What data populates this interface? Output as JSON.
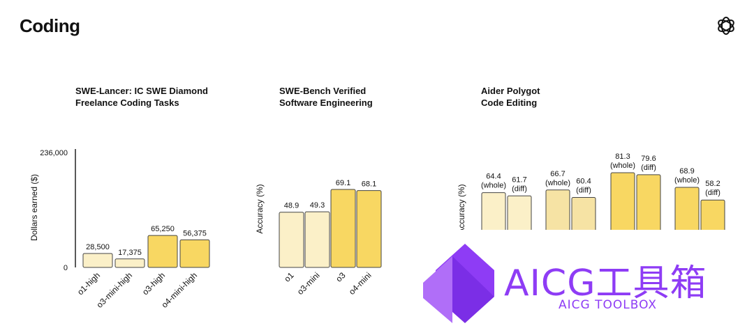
{
  "page": {
    "title": "Coding",
    "logo_icon": "openai-logo-icon"
  },
  "colors": {
    "light_bar": "#fbf0c8",
    "mid_bar": "#f6e3a4",
    "strong_bar": "#f8d762",
    "bar_stroke": "#444444",
    "watermark": "#8e3cf5"
  },
  "chart_data": [
    {
      "type": "bar",
      "title_lines": [
        "SWE-Lancer: IC SWE Diamond",
        "Freelance Coding Tasks"
      ],
      "ylabel": "Dollars earned ($)",
      "ytick_labels": [
        "236,000",
        "0"
      ],
      "ylim": [
        0,
        236000
      ],
      "categories": [
        "o1-high",
        "o3-mini-high",
        "o3-high",
        "o4-mini-high"
      ],
      "values": [
        28500,
        17375,
        65250,
        56375
      ],
      "value_labels": [
        "28,500",
        "17,375",
        "65,250",
        "56,375"
      ]
    },
    {
      "type": "bar",
      "title_lines": [
        "SWE-Bench Verified",
        "Software Engineering"
      ],
      "ylabel": "Accuracy (%)",
      "categories": [
        "o1",
        "o3-mini",
        "o3",
        "o4-mini"
      ],
      "values": [
        48.9,
        49.3,
        69.1,
        68.1
      ],
      "value_labels": [
        "48.9",
        "49.3",
        "69.1",
        "68.1"
      ]
    },
    {
      "type": "bar",
      "title_lines": [
        "Aider Polygot",
        "Code Editing"
      ],
      "ylabel": "Accuracy (%)",
      "series": [
        {
          "name": "(whole)",
          "values": [
            64.4,
            66.7,
            81.3,
            68.9
          ]
        },
        {
          "name": "(diff)",
          "values": [
            61.7,
            60.4,
            79.6,
            58.2
          ]
        }
      ],
      "value_labels": [
        [
          "64.4",
          "(whole)",
          "61.7",
          "(diff)"
        ],
        [
          "66.7",
          "(whole)",
          "60.4",
          "(diff)"
        ],
        [
          "81.3",
          "(whole)",
          "79.6",
          "(diff)"
        ],
        [
          "68.9",
          "(whole)",
          "58.2",
          "(diff)"
        ]
      ]
    }
  ],
  "watermark": {
    "title": "AICG工具箱",
    "subtitle": "AICG TOOLBOX"
  }
}
